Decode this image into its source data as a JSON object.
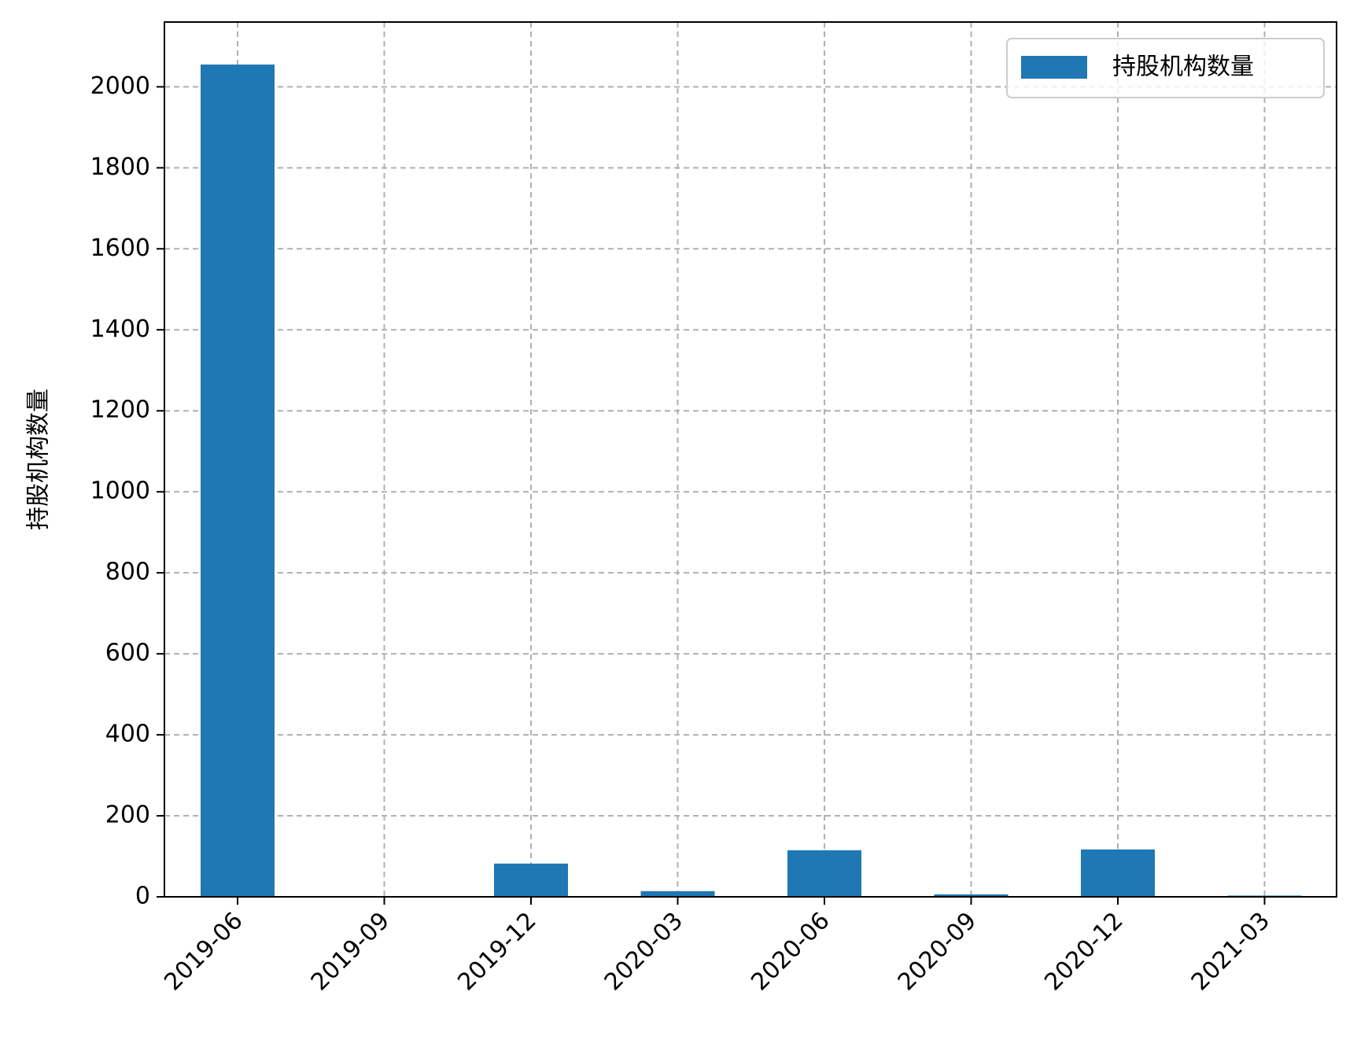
{
  "chart_data": {
    "type": "bar",
    "title": "",
    "xlabel": "",
    "ylabel": "持股机构数量",
    "categories": [
      "2019-06",
      "2019-09",
      "2019-12",
      "2020-03",
      "2020-06",
      "2020-09",
      "2020-12",
      "2021-03"
    ],
    "series": [
      {
        "name": "持股机构数量",
        "values": [
          2055,
          0,
          82,
          14,
          115,
          6,
          117,
          3
        ],
        "color": "#1f77b4"
      }
    ],
    "ylim": [
      0,
      2160
    ],
    "yticks": [
      0,
      200,
      400,
      600,
      800,
      1000,
      1200,
      1400,
      1600,
      1800,
      2000
    ],
    "grid": true,
    "legend": "top-right"
  }
}
